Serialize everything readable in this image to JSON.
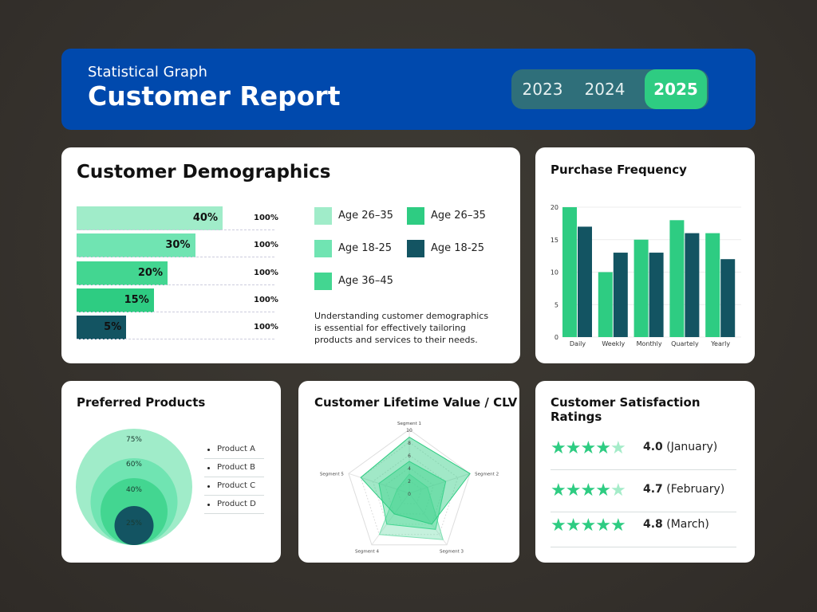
{
  "header": {
    "subtitle": "Statistical Graph",
    "title": "Customer Report",
    "years": [
      "2023",
      "2024",
      "2025"
    ],
    "active_year": "2025"
  },
  "colors": {
    "brand": "#0049ad",
    "green": "#2ecc82",
    "teal": "#135462",
    "light1": "#a0ecc9",
    "light2": "#70e4b2",
    "light3": "#43d691"
  },
  "demographics": {
    "title": "Customer Demographics",
    "bars": [
      {
        "value": 40,
        "label": "40%",
        "total": "100%",
        "color": "#a0ecc9"
      },
      {
        "value": 30,
        "label": "30%",
        "total": "100%",
        "color": "#70e4b2"
      },
      {
        "value": 20,
        "label": "20%",
        "total": "100%",
        "color": "#43d691"
      },
      {
        "value": 15,
        "label": "15%",
        "total": "100%",
        "color": "#2ecc82"
      },
      {
        "value": 5,
        "label": "5%",
        "total": "100%",
        "color": "#135462"
      }
    ],
    "legend": [
      {
        "label": "Age 26–35",
        "color": "#a0ecc9"
      },
      {
        "label": "Age 26–35",
        "color": "#2ecc82"
      },
      {
        "label": "Age 18-25",
        "color": "#70e4b2"
      },
      {
        "label": "Age 18-25",
        "color": "#135462"
      },
      {
        "label": "Age 36–45",
        "color": "#43d691"
      }
    ],
    "description": "Understanding customer demographics is essential for effectively tailoring products and services to their needs."
  },
  "chart_data": [
    {
      "type": "bar",
      "title": "Purchase Frequency",
      "categories": [
        "Daily",
        "Weekly",
        "Monthly",
        "Quartely",
        "Yearly"
      ],
      "series": [
        {
          "values": [
            20,
            10,
            15,
            18,
            16
          ],
          "color": "#2ecc82"
        },
        {
          "values": [
            17,
            13,
            13,
            16,
            12
          ],
          "color": "#135462"
        }
      ],
      "yticks": [
        "0",
        "5",
        "10",
        "15",
        "20"
      ],
      "ylim": [
        0,
        20
      ],
      "grid": true
    },
    {
      "type": "radar",
      "title": "Customer Lifetime Value / CLV",
      "axes": [
        "Segment 1",
        "Segment 2",
        "Segment 3",
        "Segment 4",
        "Segment 5"
      ],
      "rticks": [
        "0",
        "2",
        "4",
        "6",
        "8",
        "10"
      ],
      "rlim": [
        0,
        10
      ],
      "series": [
        {
          "values": [
            3,
            3,
            9,
            8,
            2
          ],
          "color": "#7fe0b3"
        },
        {
          "values": [
            5,
            6,
            7,
            6,
            5
          ],
          "color": "#43d691"
        },
        {
          "values": [
            8.8,
            10,
            6,
            4,
            8
          ],
          "color": "#2ecc82"
        }
      ]
    }
  ],
  "products": {
    "title": "Preferred Products",
    "circles": [
      {
        "label": "75%",
        "value": 75,
        "color": "#a0ecc9"
      },
      {
        "label": "60%",
        "value": 60,
        "color": "#70e4b2"
      },
      {
        "label": "40%",
        "value": 40,
        "color": "#43d691"
      },
      {
        "label": "25%",
        "value": 25,
        "color": "#135462"
      }
    ],
    "items": [
      "Product A",
      "Product B",
      "Product C",
      "Product D"
    ]
  },
  "satisfaction": {
    "title": "Customer Satisfaction Ratings",
    "ratings": [
      {
        "score": "4.0",
        "month": "(January)",
        "filled_stars": 4
      },
      {
        "score": "4.7",
        "month": "(February)",
        "filled_stars": 4
      },
      {
        "score": "4.8",
        "month": "(March)",
        "filled_stars": 5
      }
    ]
  }
}
